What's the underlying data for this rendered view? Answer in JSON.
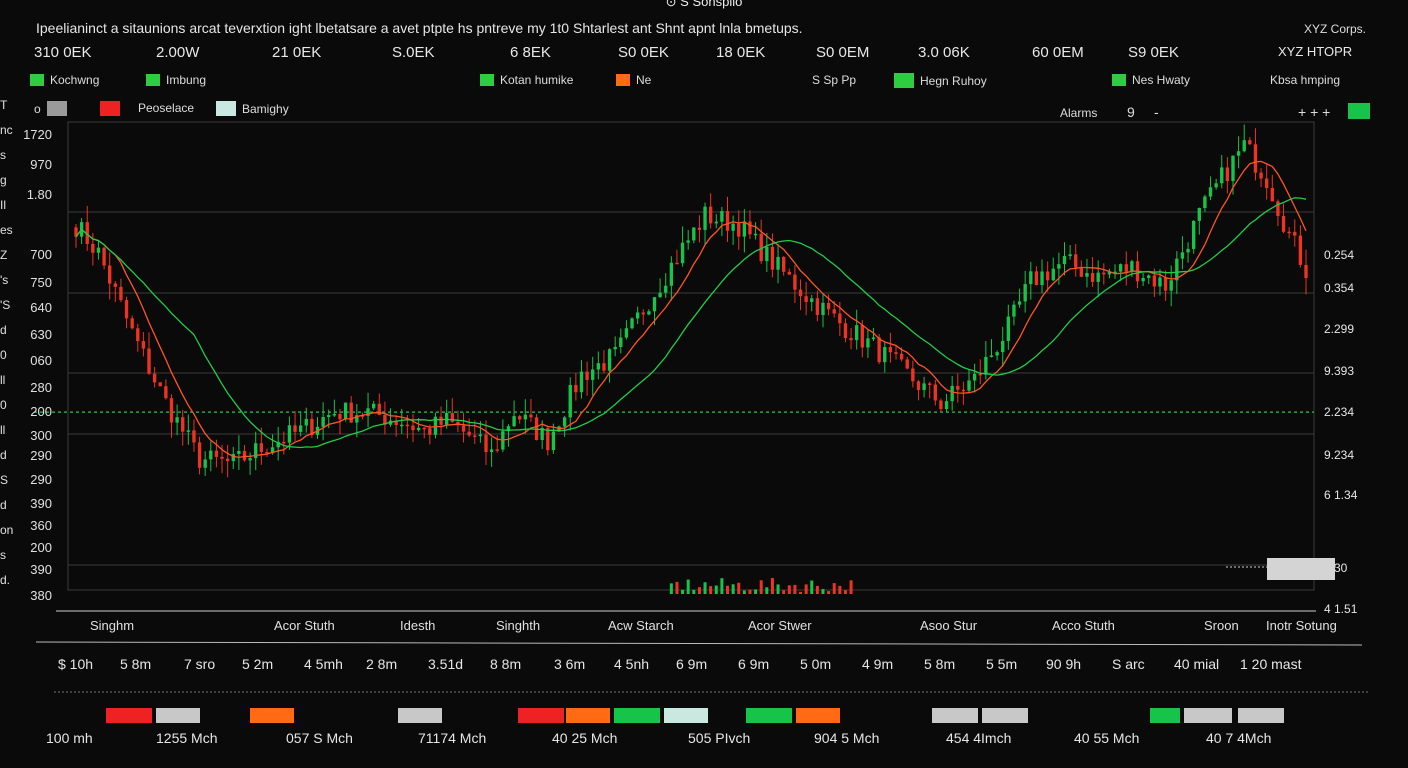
{
  "header": {
    "top_title": "⊙ S Sonspiio",
    "headline": "Ipeelianinct a sitaunions arcat teverxtion ight lbetatsare a avet ptpte hs pntreve my 1t0 Shtarlest ant Shnt apnt lnla bmetups.",
    "corner_title": "XYZ Corps."
  },
  "stats": [
    "310 0EK",
    "2.00W",
    "21 0EK",
    "S.0EK",
    "6 8EK",
    "S0 0EK",
    "18 0EK",
    "S0 0EM",
    "3.0 06K",
    "60 0EM",
    "S9 0EK",
    "XYZ HTOPR"
  ],
  "legend_row1": [
    {
      "label": "Kochwng",
      "color": "#2ecc40"
    },
    {
      "label": "Imbung",
      "color": "#2ecc40"
    },
    {
      "label": "Kotan humike",
      "color": "#2ecc40"
    },
    {
      "label": "Ne",
      "color": "#ff6a13"
    },
    {
      "label": "S Sp Pp",
      "color": ""
    },
    {
      "label": "Hegn Ruhoy",
      "color": "#2ecc40"
    },
    {
      "label": "Nes Hwaty",
      "color": "#2ecc40"
    },
    {
      "label": "Kbsa hmping",
      "color": ""
    }
  ],
  "legend_row2": [
    {
      "label": "o",
      "color": "#9a9a9a"
    },
    {
      "label": "",
      "color": "#ee2222"
    },
    {
      "label": "Peoselace",
      "color": ""
    },
    {
      "label": "Bamighy",
      "color": "#c8e8e0"
    }
  ],
  "controls": {
    "alarms": "Alarms",
    "value": "9",
    "dash": "-",
    "plus": "+ + +",
    "accent": "#16c44a"
  },
  "y_axis_labels": [
    "1720",
    "970",
    "1.80",
    "700",
    "750",
    "640",
    "630",
    "060",
    "280",
    "200",
    "300",
    "290",
    "290",
    "390",
    "360",
    "200",
    "390",
    "380"
  ],
  "left_edge": [
    "T",
    "nc",
    "s",
    "g",
    "Il",
    "es",
    "Z",
    "'s",
    "'S",
    "d",
    "0",
    "ll",
    "0",
    "ll",
    "d",
    "S",
    "d",
    "on",
    "s",
    "d."
  ],
  "right_axis_labels": [
    "0.254",
    "0.354",
    "2.299",
    "9.393",
    "2.234",
    "9.234",
    "6 1.34",
    "4.30",
    "4 1.51"
  ],
  "price_box": "",
  "scale_labels": [
    "Singhm",
    "Acor Stuth",
    "Idesth",
    "Singhth",
    "Acw Starch",
    "Acor Stwer",
    "Asoo Stur",
    "Acco Stuth",
    "Sroon",
    "Inotr Sotung"
  ],
  "time_labels": [
    "$ 10h",
    "5 8m",
    "7 sro",
    "5 2m",
    "4 5mh",
    "2 8m",
    "3.51d",
    "8 8m",
    "3 6m",
    "4 5nh",
    "6 9m",
    "6 9m",
    "5 0m",
    "4 9m",
    "5 8m",
    "5 5m",
    "90 9h",
    "S arc",
    "40 mial",
    "1 20 mast"
  ],
  "volume_bars": [
    {
      "color": "#ee2222"
    },
    {
      "color": "#c8c8c8"
    },
    {
      "color": "#ff6a13"
    },
    {
      "color": "#c8c8c8"
    },
    {
      "color": "#ee2222"
    },
    {
      "color": "#ff6a13"
    },
    {
      "color": "#16c44a"
    },
    {
      "color": "#c8e8e0"
    },
    {
      "color": "#16c44a"
    },
    {
      "color": "#ff6a13"
    },
    {
      "color": "#c8c8c8"
    },
    {
      "color": "#c8c8c8"
    },
    {
      "color": "#16c44a"
    },
    {
      "color": "#c8c8c8"
    },
    {
      "color": "#c8c8c8"
    }
  ],
  "volume_labels": [
    "100 mh",
    "1255 Mch",
    "057 S Mch",
    "71174 Mch",
    "40 25 Mch",
    "505 PIvch",
    "904 5 Mch",
    "454 4Imch",
    "40 55 Mch",
    "40 7 4Mch"
  ],
  "chart_data": {
    "type": "candlestick",
    "title": "",
    "xlabel": "",
    "ylabel": "",
    "grid": true,
    "colors": {
      "up": "#16c44a",
      "down": "#ee3322",
      "ma_fast": "#ff5522",
      "ma_slow": "#22cc44",
      "reference": "#22cc44"
    },
    "y_range": [
      0,
      100
    ],
    "reference_level": 38,
    "anchor_prices": [
      [
        0,
        78
      ],
      [
        4,
        72
      ],
      [
        10,
        55
      ],
      [
        16,
        40
      ],
      [
        22,
        28
      ],
      [
        28,
        27
      ],
      [
        34,
        31
      ],
      [
        40,
        34
      ],
      [
        46,
        38
      ],
      [
        52,
        38
      ],
      [
        58,
        36
      ],
      [
        62,
        34
      ],
      [
        66,
        36
      ],
      [
        70,
        33
      ],
      [
        74,
        29
      ],
      [
        78,
        38
      ],
      [
        84,
        32
      ],
      [
        90,
        46
      ],
      [
        96,
        50
      ],
      [
        102,
        62
      ],
      [
        108,
        73
      ],
      [
        112,
        80
      ],
      [
        118,
        78
      ],
      [
        124,
        70
      ],
      [
        130,
        63
      ],
      [
        136,
        57
      ],
      [
        142,
        52
      ],
      [
        148,
        46
      ],
      [
        154,
        40
      ],
      [
        160,
        45
      ],
      [
        166,
        56
      ],
      [
        170,
        66
      ],
      [
        176,
        70
      ],
      [
        182,
        67
      ],
      [
        188,
        69
      ],
      [
        194,
        65
      ],
      [
        200,
        80
      ],
      [
        204,
        88
      ],
      [
        208,
        95
      ],
      [
        212,
        88
      ],
      [
        216,
        76
      ],
      [
        220,
        66
      ]
    ],
    "series": [
      {
        "name": "candles",
        "count": 220
      },
      {
        "name": "ma_fast"
      },
      {
        "name": "ma_slow"
      }
    ],
    "volume_cluster": {
      "start": 106,
      "end": 138
    }
  }
}
